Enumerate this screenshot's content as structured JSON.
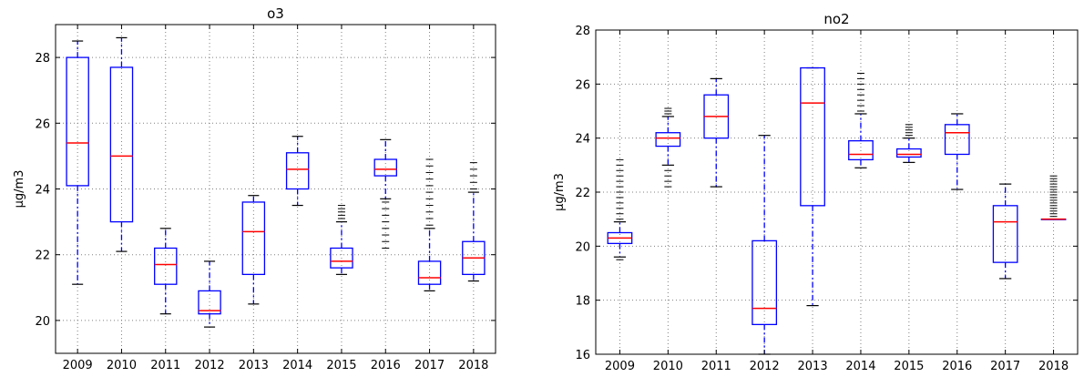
{
  "chart_data": [
    {
      "type": "box",
      "title": "o3",
      "xlabel": "",
      "ylabel": "µg/m3",
      "ylim": [
        19,
        29
      ],
      "yticks": [
        20,
        22,
        24,
        26,
        28
      ],
      "grid": true,
      "categories": [
        "2009",
        "2010",
        "2011",
        "2012",
        "2013",
        "2014",
        "2015",
        "2016",
        "2017",
        "2018"
      ],
      "boxes": [
        {
          "whislo": 21.1,
          "q1": 24.1,
          "med": 25.4,
          "q3": 28.0,
          "whishi": 28.5,
          "fliers": []
        },
        {
          "whislo": 22.1,
          "q1": 23.0,
          "med": 25.0,
          "q3": 27.7,
          "whishi": 28.6,
          "fliers": []
        },
        {
          "whislo": 20.2,
          "q1": 21.1,
          "med": 21.7,
          "q3": 22.2,
          "whishi": 22.8,
          "fliers": []
        },
        {
          "whislo": 19.8,
          "q1": 20.2,
          "med": 20.3,
          "q3": 20.9,
          "whishi": 21.8,
          "fliers": []
        },
        {
          "whislo": 20.5,
          "q1": 21.4,
          "med": 22.7,
          "q3": 23.6,
          "whishi": 23.8,
          "fliers": []
        },
        {
          "whislo": 23.5,
          "q1": 24.0,
          "med": 24.6,
          "q3": 25.1,
          "whishi": 25.6,
          "fliers": []
        },
        {
          "whislo": 21.4,
          "q1": 21.6,
          "med": 21.8,
          "q3": 22.2,
          "whishi": 23.0,
          "fliers": [
            23.1,
            23.2,
            23.3,
            23.4,
            23.5
          ]
        },
        {
          "whislo": 23.7,
          "q1": 24.4,
          "med": 24.6,
          "q3": 24.9,
          "whishi": 25.5,
          "fliers": [
            22.2,
            22.4,
            22.6,
            22.8,
            23.0,
            23.2,
            23.4,
            23.6
          ]
        },
        {
          "whislo": 20.9,
          "q1": 21.1,
          "med": 21.3,
          "q3": 21.8,
          "whishi": 22.8,
          "fliers": [
            22.9,
            23.1,
            23.3,
            23.5,
            23.7,
            23.9,
            24.1,
            24.3,
            24.5,
            24.7,
            24.9
          ]
        },
        {
          "whislo": 21.2,
          "q1": 21.4,
          "med": 21.9,
          "q3": 22.4,
          "whishi": 23.9,
          "fliers": [
            24.0,
            24.2,
            24.4,
            24.6,
            24.8
          ]
        }
      ]
    },
    {
      "type": "box",
      "title": "no2",
      "xlabel": "",
      "ylabel": "µg/m3",
      "ylim": [
        16,
        28
      ],
      "yticks": [
        16,
        18,
        20,
        22,
        24,
        26,
        28
      ],
      "grid": true,
      "categories": [
        "2009",
        "2010",
        "2011",
        "2012",
        "2013",
        "2014",
        "2015",
        "2016",
        "2017",
        "2018"
      ],
      "boxes": [
        {
          "whislo": 19.6,
          "q1": 20.1,
          "med": 20.3,
          "q3": 20.5,
          "whishi": 20.9,
          "fliers": [
            19.5,
            21.0,
            21.2,
            21.4,
            21.6,
            21.8,
            22.0,
            22.2,
            22.4,
            22.6,
            22.8,
            23.0,
            23.2
          ]
        },
        {
          "whislo": 23.0,
          "q1": 23.7,
          "med": 24.0,
          "q3": 24.2,
          "whishi": 24.8,
          "fliers": [
            22.2,
            22.4,
            22.6,
            22.8,
            24.9,
            25.0,
            25.1
          ]
        },
        {
          "whislo": 22.2,
          "q1": 24.0,
          "med": 24.8,
          "q3": 25.6,
          "whishi": 26.2,
          "fliers": []
        },
        {
          "whislo": 16.0,
          "q1": 17.1,
          "med": 17.7,
          "q3": 20.2,
          "whishi": 24.1,
          "fliers": []
        },
        {
          "whislo": 17.8,
          "q1": 21.5,
          "med": 25.3,
          "q3": 26.6,
          "whishi": 26.6,
          "fliers": []
        },
        {
          "whislo": 22.9,
          "q1": 23.2,
          "med": 23.4,
          "q3": 23.9,
          "whishi": 24.9,
          "fliers": [
            25.0,
            25.2,
            25.4,
            25.6,
            25.8,
            26.0,
            26.2,
            26.4
          ]
        },
        {
          "whislo": 23.1,
          "q1": 23.3,
          "med": 23.4,
          "q3": 23.6,
          "whishi": 24.0,
          "fliers": [
            24.1,
            24.2,
            24.3,
            24.4,
            24.5
          ]
        },
        {
          "whislo": 22.1,
          "q1": 23.4,
          "med": 24.2,
          "q3": 24.5,
          "whishi": 24.9,
          "fliers": []
        },
        {
          "whislo": 18.8,
          "q1": 19.4,
          "med": 20.9,
          "q3": 21.5,
          "whishi": 22.3,
          "fliers": []
        },
        {
          "whislo": 21.0,
          "q1": 21.0,
          "med": 21.0,
          "q3": 21.0,
          "whishi": 21.0,
          "fliers": [
            21.1,
            21.2,
            21.3,
            21.4,
            21.5,
            21.6,
            21.7,
            21.8,
            21.9,
            22.0,
            22.1,
            22.2,
            22.3,
            22.4,
            22.5,
            22.6
          ]
        }
      ]
    }
  ],
  "colors": {
    "box": "#0000ff",
    "median": "#ff0000",
    "flier": "#000000",
    "grid": "#808080",
    "axes": "#000000"
  }
}
